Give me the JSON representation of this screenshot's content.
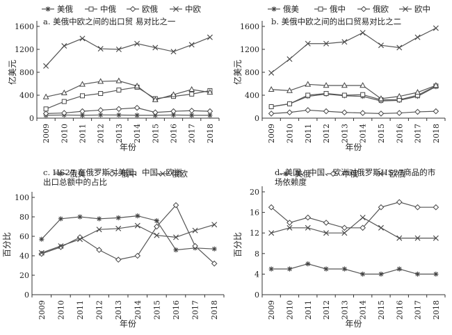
{
  "chart_data": [
    {
      "type": "line",
      "title": "a. 美俄中欧之间的出口贸 易对比之一",
      "xlabel": "年份",
      "ylabel": "亿美元",
      "x": [
        "2009",
        "2010",
        "2011",
        "2012",
        "2013",
        "2014",
        "2015",
        "2016",
        "2017",
        "2018"
      ],
      "ylim": [
        0,
        1600
      ],
      "yticks": [
        0,
        400,
        800,
        1200,
        1600
      ],
      "legend_position": "top",
      "series": [
        {
          "name": "美俄",
          "marker": "star",
          "values": [
            50,
            55,
            50,
            55,
            55,
            50,
            50,
            55,
            50,
            50
          ]
        },
        {
          "name": "中俄",
          "marker": "square",
          "values": [
            160,
            290,
            390,
            430,
            490,
            540,
            340,
            380,
            420,
            480
          ]
        },
        {
          "name": "欧俄",
          "marker": "diamond",
          "values": [
            80,
            90,
            120,
            140,
            160,
            180,
            100,
            120,
            130,
            120
          ]
        },
        {
          "name": "中欧",
          "marker": "x",
          "values": [
            910,
            1260,
            1390,
            1210,
            1200,
            1300,
            1230,
            1160,
            1280,
            1410
          ]
        },
        {
          "name": "",
          "marker": "triangle",
          "values": [
            370,
            440,
            590,
            640,
            650,
            560,
            320,
            410,
            500,
            450
          ]
        }
      ]
    },
    {
      "type": "line",
      "title": "b. 美俄中欧之间的出口贸易对比之二",
      "xlabel": "年份",
      "ylabel": "亿美元",
      "x": [
        "2009",
        "2010",
        "2011",
        "2012",
        "2013",
        "2014",
        "2015",
        "2016",
        "2017",
        "2018"
      ],
      "ylim": [
        0,
        1600
      ],
      "yticks": [
        0,
        400,
        800,
        1200,
        1600
      ],
      "legend_position": "top",
      "series": [
        {
          "name": "俄美",
          "marker": "star",
          "values": [
            200,
            250,
            380,
            420,
            390,
            380,
            300,
            310,
            380,
            550
          ]
        },
        {
          "name": "俄中",
          "marker": "square",
          "values": [
            200,
            250,
            400,
            430,
            400,
            410,
            320,
            320,
            400,
            560
          ]
        },
        {
          "name": "俄欧",
          "marker": "diamond",
          "values": [
            80,
            100,
            140,
            120,
            100,
            90,
            80,
            90,
            110,
            120
          ]
        },
        {
          "name": "欧中",
          "marker": "x",
          "values": [
            790,
            1030,
            1300,
            1300,
            1330,
            1490,
            1270,
            1230,
            1410,
            1570
          ]
        },
        {
          "name": "",
          "marker": "triangle",
          "values": [
            500,
            480,
            590,
            570,
            570,
            570,
            340,
            380,
            450,
            570
          ]
        }
      ]
    },
    {
      "type": "line",
      "title": "c. HS27 在俄罗斯对美国、中国、欧洲出口总额中的占比",
      "xlabel": "年份",
      "ylabel": "百分比",
      "x": [
        "2009",
        "2010",
        "2011",
        "2012",
        "2013",
        "2014",
        "2015",
        "2016",
        "2017",
        "2018"
      ],
      "ylim": [
        0,
        100
      ],
      "yticks": [
        0,
        20,
        40,
        60,
        80,
        100
      ],
      "legend_position": "top",
      "series": [
        {
          "name": "俄美",
          "marker": "star",
          "values": [
            57,
            78,
            80,
            78,
            79,
            81,
            76,
            46,
            48,
            47
          ]
        },
        {
          "name": "俄中",
          "marker": "diamond",
          "values": [
            42,
            49,
            59,
            46,
            36,
            40,
            70,
            92,
            50,
            32
          ]
        },
        {
          "name": "俄欧",
          "marker": "x",
          "values": [
            43,
            50,
            57,
            67,
            68,
            71,
            61,
            59,
            66,
            72
          ]
        }
      ]
    },
    {
      "type": "line",
      "title": "d. 美国、中国、欧洲对俄罗斯HS27商品的市场依赖度",
      "xlabel": "年份",
      "ylabel": "百分比",
      "x": [
        "2009",
        "2010",
        "2011",
        "2012",
        "2013",
        "2014",
        "2015",
        "2016",
        "2017",
        "2018"
      ],
      "ylim": [
        0,
        20
      ],
      "yticks": [
        0,
        4,
        8,
        12,
        16,
        20
      ],
      "legend_position": "top",
      "series": [
        {
          "name": "美俄",
          "marker": "star",
          "values": [
            5,
            5,
            6,
            5,
            5,
            4,
            4,
            5,
            4,
            4
          ]
        },
        {
          "name": "中俄",
          "marker": "diamond",
          "values": [
            17,
            14,
            15,
            14,
            13,
            13,
            17,
            18,
            17,
            17
          ]
        },
        {
          "name": "欧俄",
          "marker": "x",
          "values": [
            12,
            13,
            13,
            12,
            12,
            15,
            13,
            11,
            11,
            11
          ]
        }
      ]
    }
  ]
}
